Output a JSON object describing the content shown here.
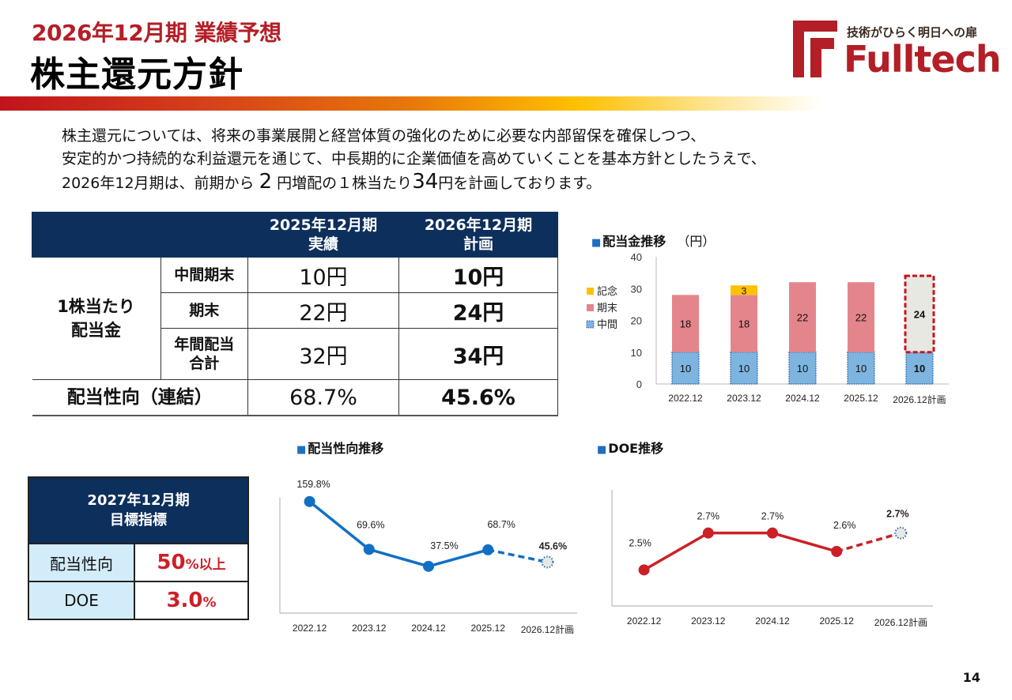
{
  "header": {
    "subtitle": "2026年12月期 業績予想",
    "title": "株主還元方針",
    "logo": {
      "tagline": "技術がひらく明日への扉",
      "name": "Fulltech",
      "color": "#b41e26"
    }
  },
  "intro": {
    "line1": "株主還元については、将来の事業展開と経営体質の強化のために必要な内部留保を確保しつつ、",
    "line2": "安定的かつ持続的な利益還元を通じて、中長期的に企業価値を高めていくことを基本方針としたうえで、",
    "line3_a": "2026年12月期は、前期から",
    "line3_big1": "2",
    "line3_b": "円増配の１株当たり",
    "line3_big2": "34",
    "line3_c": "円を計画しております。"
  },
  "dividend_table": {
    "headers": [
      {
        "line1": "2025年12月期",
        "line2": "実績"
      },
      {
        "line1": "2026年12月期",
        "line2": "計画"
      }
    ],
    "group_label_line1": "1株当たり",
    "group_label_line2": "配当金",
    "rows": [
      {
        "label_line1": "中間期末",
        "label_line2": "",
        "actual": "10円",
        "plan": "10円"
      },
      {
        "label_line1": "期末",
        "label_line2": "",
        "actual": "22円",
        "plan": "24円"
      },
      {
        "label_line1": "年間配当",
        "label_line2": "合計",
        "actual": "32円",
        "plan": "34円"
      }
    ],
    "payout_row": {
      "label": "配当性向（連結）",
      "actual": "68.7%",
      "plan": "45.6%"
    }
  },
  "target_table": {
    "header_line1": "2027年12月期",
    "header_line2": "目標指標",
    "rows": [
      {
        "label": "配当性向",
        "value_num": "50",
        "value_unit": "%以上"
      },
      {
        "label": "DOE",
        "value_num": "3.0",
        "value_unit": "%"
      }
    ],
    "value_color": "#cc2027"
  },
  "chart_data": [
    {
      "type": "bar",
      "stacked": true,
      "title": "配当金推移",
      "unit": "（円）",
      "categories": [
        "2022.12",
        "2023.12",
        "2024.12",
        "2025.12",
        "2026.12計画"
      ],
      "ylim": [
        0,
        40
      ],
      "yticks": [
        0,
        10,
        20,
        30,
        40
      ],
      "legend_position": "left",
      "series": [
        {
          "name": "中間",
          "values": [
            10,
            10,
            10,
            10,
            10
          ],
          "color": "#7db5e0"
        },
        {
          "name": "期末",
          "values": [
            18,
            18,
            22,
            22,
            24
          ],
          "color": "#e4858c",
          "plan_color": "#e8e8e2"
        },
        {
          "name": "記念",
          "values": [
            0,
            3,
            0,
            0,
            0
          ],
          "color": "#ffc000"
        }
      ],
      "legend_order": [
        "記念",
        "期末",
        "中間"
      ],
      "plan_highlight_color": "#c8141c"
    },
    {
      "type": "line",
      "title": "配当性向推移",
      "categories": [
        "2022.12",
        "2023.12",
        "2024.12",
        "2025.12",
        "2026.12計画"
      ],
      "values": [
        159.8,
        69.6,
        37.5,
        68.7,
        45.6
      ],
      "labels": [
        "159.8%",
        "69.6%",
        "37.5%",
        "68.7%",
        "45.6%"
      ],
      "planned_last": true,
      "color": "#1170c4",
      "ylim": [
        0,
        170
      ],
      "grid": false
    },
    {
      "type": "line",
      "title": "DOE推移",
      "categories": [
        "2022.12",
        "2023.12",
        "2024.12",
        "2025.12",
        "2026.12計画"
      ],
      "values": [
        2.5,
        2.7,
        2.7,
        2.6,
        2.7
      ],
      "labels": [
        "2.5%",
        "2.7%",
        "2.7%",
        "2.6%",
        "2.7%"
      ],
      "planned_last": true,
      "color": "#cc2027",
      "ylim": [
        2.3,
        2.78
      ],
      "grid": false
    }
  ],
  "footer": {
    "page_number": "14"
  }
}
